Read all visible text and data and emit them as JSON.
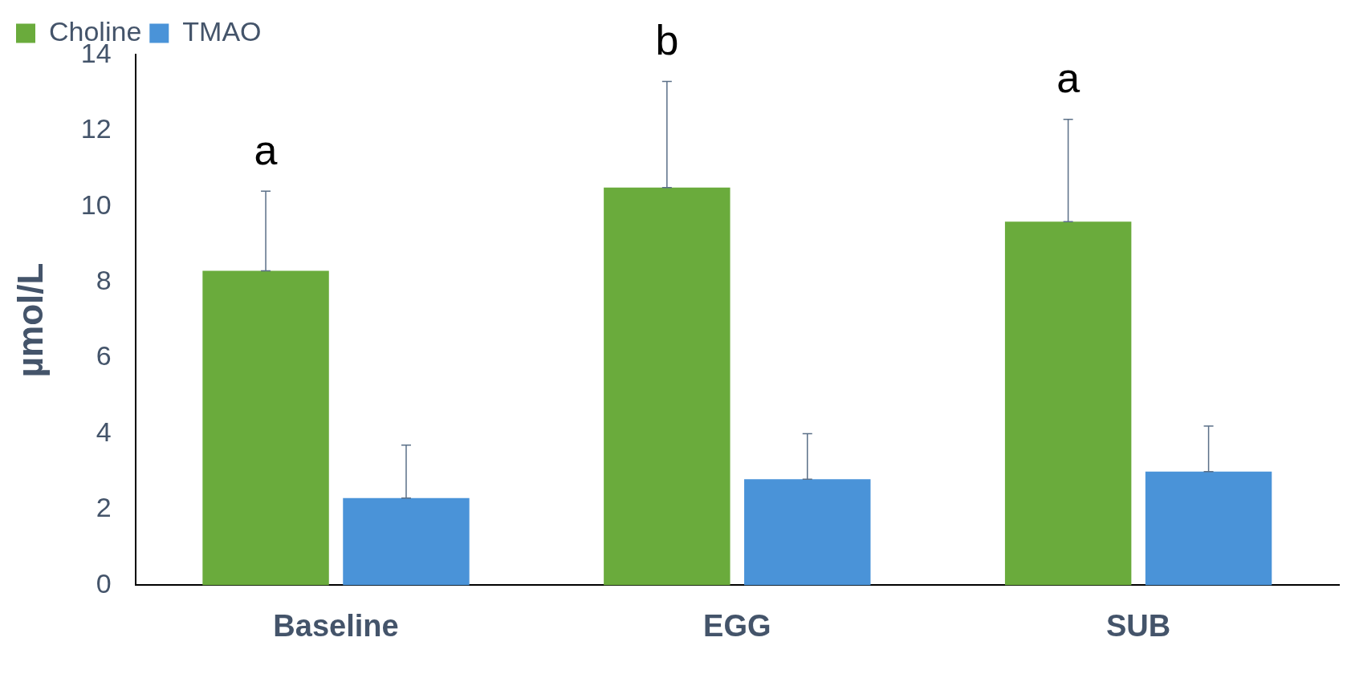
{
  "chart_data": {
    "type": "bar",
    "ylabel": "µmol/L",
    "categories": [
      "Baseline",
      "EGG",
      "SUB"
    ],
    "series": [
      {
        "name": "Choline",
        "color": "#6aab3c",
        "values": [
          8.3,
          10.5,
          9.6
        ],
        "errors": [
          [
            8.3,
            10.4
          ],
          [
            10.5,
            13.3
          ],
          [
            9.6,
            12.3
          ]
        ]
      },
      {
        "name": "TMAO",
        "color": "#4a93d8",
        "values": [
          2.3,
          2.8,
          3.0
        ],
        "errors": [
          [
            2.3,
            3.7
          ],
          [
            2.8,
            4.0
          ],
          [
            3.0,
            4.2
          ]
        ]
      }
    ],
    "ylim": [
      0,
      14
    ],
    "yticks": [
      0,
      2,
      4,
      6,
      8,
      10,
      12,
      14
    ],
    "grid": false,
    "legend": "top left",
    "annotations": [
      "a",
      "b",
      "a"
    ]
  }
}
